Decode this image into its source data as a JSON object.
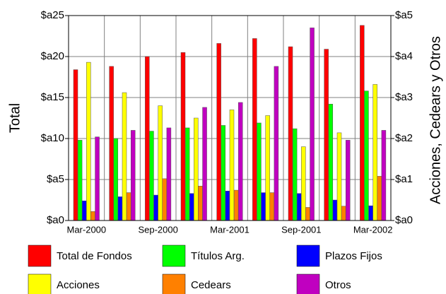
{
  "chart_data": {
    "type": "bar",
    "y_label": "Total",
    "y2_label": "Acciones, Cedears y Otros",
    "categories": [
      "Mar-2000",
      null,
      "Sep-2000",
      null,
      "Mar-2001",
      null,
      "Sep-2001",
      null,
      "Mar-2002"
    ],
    "ylim": [
      0,
      25
    ],
    "yticks": [
      {
        "value": 0,
        "label": "$a0"
      },
      {
        "value": 5,
        "label": "$a5"
      },
      {
        "value": 10,
        "label": "$a10"
      },
      {
        "value": 15,
        "label": "$a15"
      },
      {
        "value": 20,
        "label": "$a20"
      },
      {
        "value": 25,
        "label": "$a25"
      }
    ],
    "y2lim": [
      0,
      5
    ],
    "y2ticks": [
      {
        "value": 0,
        "label": "$a0"
      },
      {
        "value": 1,
        "label": "$a1"
      },
      {
        "value": 2,
        "label": "$a2"
      },
      {
        "value": 3,
        "label": "$a3"
      },
      {
        "value": 4,
        "label": "$a4"
      },
      {
        "value": 5,
        "label": "$a5"
      }
    ],
    "grid": true,
    "series": [
      {
        "name": "Total de Fondos",
        "color": "#ff0000",
        "values": [
          18.4,
          18.8,
          20.0,
          20.5,
          21.6,
          22.2,
          21.2,
          20.9,
          23.8
        ]
      },
      {
        "name": "Títulos Arg.",
        "color": "#00ff00",
        "values": [
          9.8,
          10.0,
          10.9,
          11.3,
          11.6,
          11.9,
          11.2,
          14.2,
          15.8
        ]
      },
      {
        "name": "Plazos Fijos",
        "color": "#0000ff",
        "values": [
          2.4,
          2.9,
          3.1,
          3.3,
          3.6,
          3.4,
          3.3,
          2.5,
          1.8
        ]
      },
      {
        "name": "Acciones",
        "color": "#ffff00",
        "axis": "y2",
        "values": [
          3.86,
          3.12,
          2.8,
          2.5,
          2.7,
          2.56,
          1.8,
          2.14,
          3.32
        ]
      },
      {
        "name": "Cedears",
        "color": "#ff8000",
        "axis": "y2",
        "values": [
          0.22,
          0.68,
          1.02,
          0.84,
          0.74,
          0.68,
          0.32,
          0.35,
          1.08
        ]
      },
      {
        "name": "Otros",
        "color": "#c000c0",
        "axis": "y2",
        "values": [
          2.04,
          2.2,
          2.26,
          2.76,
          2.88,
          3.76,
          4.7,
          1.96,
          2.2
        ]
      }
    ]
  }
}
